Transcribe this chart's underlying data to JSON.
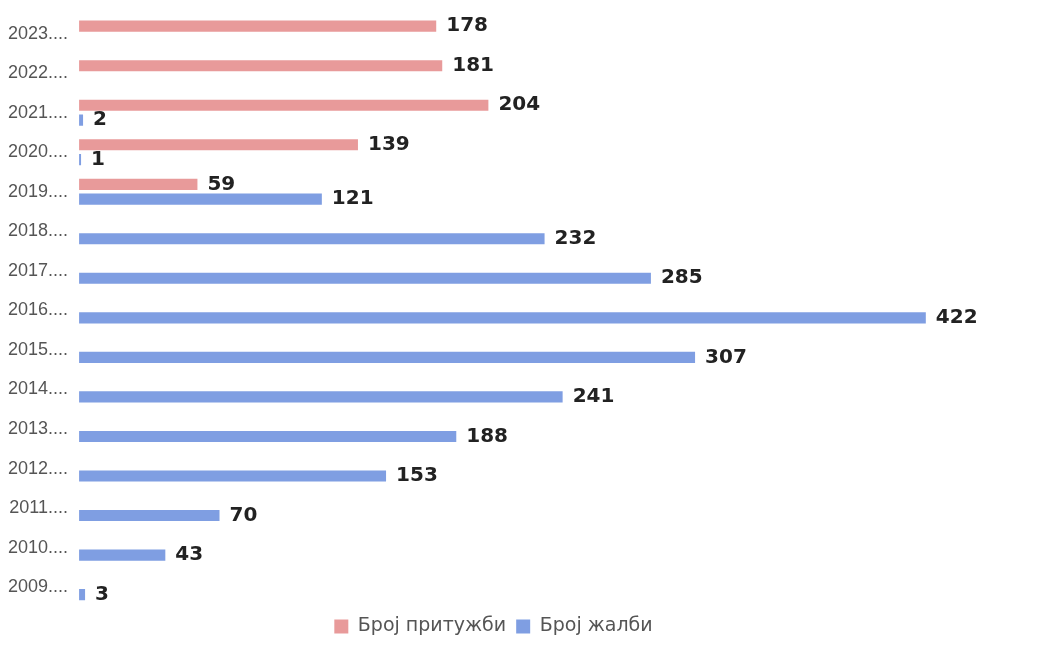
{
  "chart_data": {
    "type": "bar",
    "orientation": "horizontal",
    "categories": [
      "2023....",
      "2022....",
      "2021....",
      "2020....",
      "2019....",
      "2018....",
      "2017....",
      "2016....",
      "2015....",
      "2014....",
      "2013....",
      "2012....",
      "2011....",
      "2010....",
      "2009...."
    ],
    "series": [
      {
        "name": "Број притужби",
        "color": "#e89a9a",
        "values": [
          178,
          181,
          204,
          139,
          59,
          null,
          null,
          null,
          null,
          null,
          null,
          null,
          null,
          null,
          null
        ]
      },
      {
        "name": "Број жалби",
        "color": "#7f9ee2",
        "values": [
          null,
          null,
          2,
          1,
          121,
          232,
          285,
          422,
          307,
          241,
          188,
          153,
          70,
          43,
          3
        ]
      }
    ],
    "data_labels": true,
    "legend": "bottom"
  }
}
